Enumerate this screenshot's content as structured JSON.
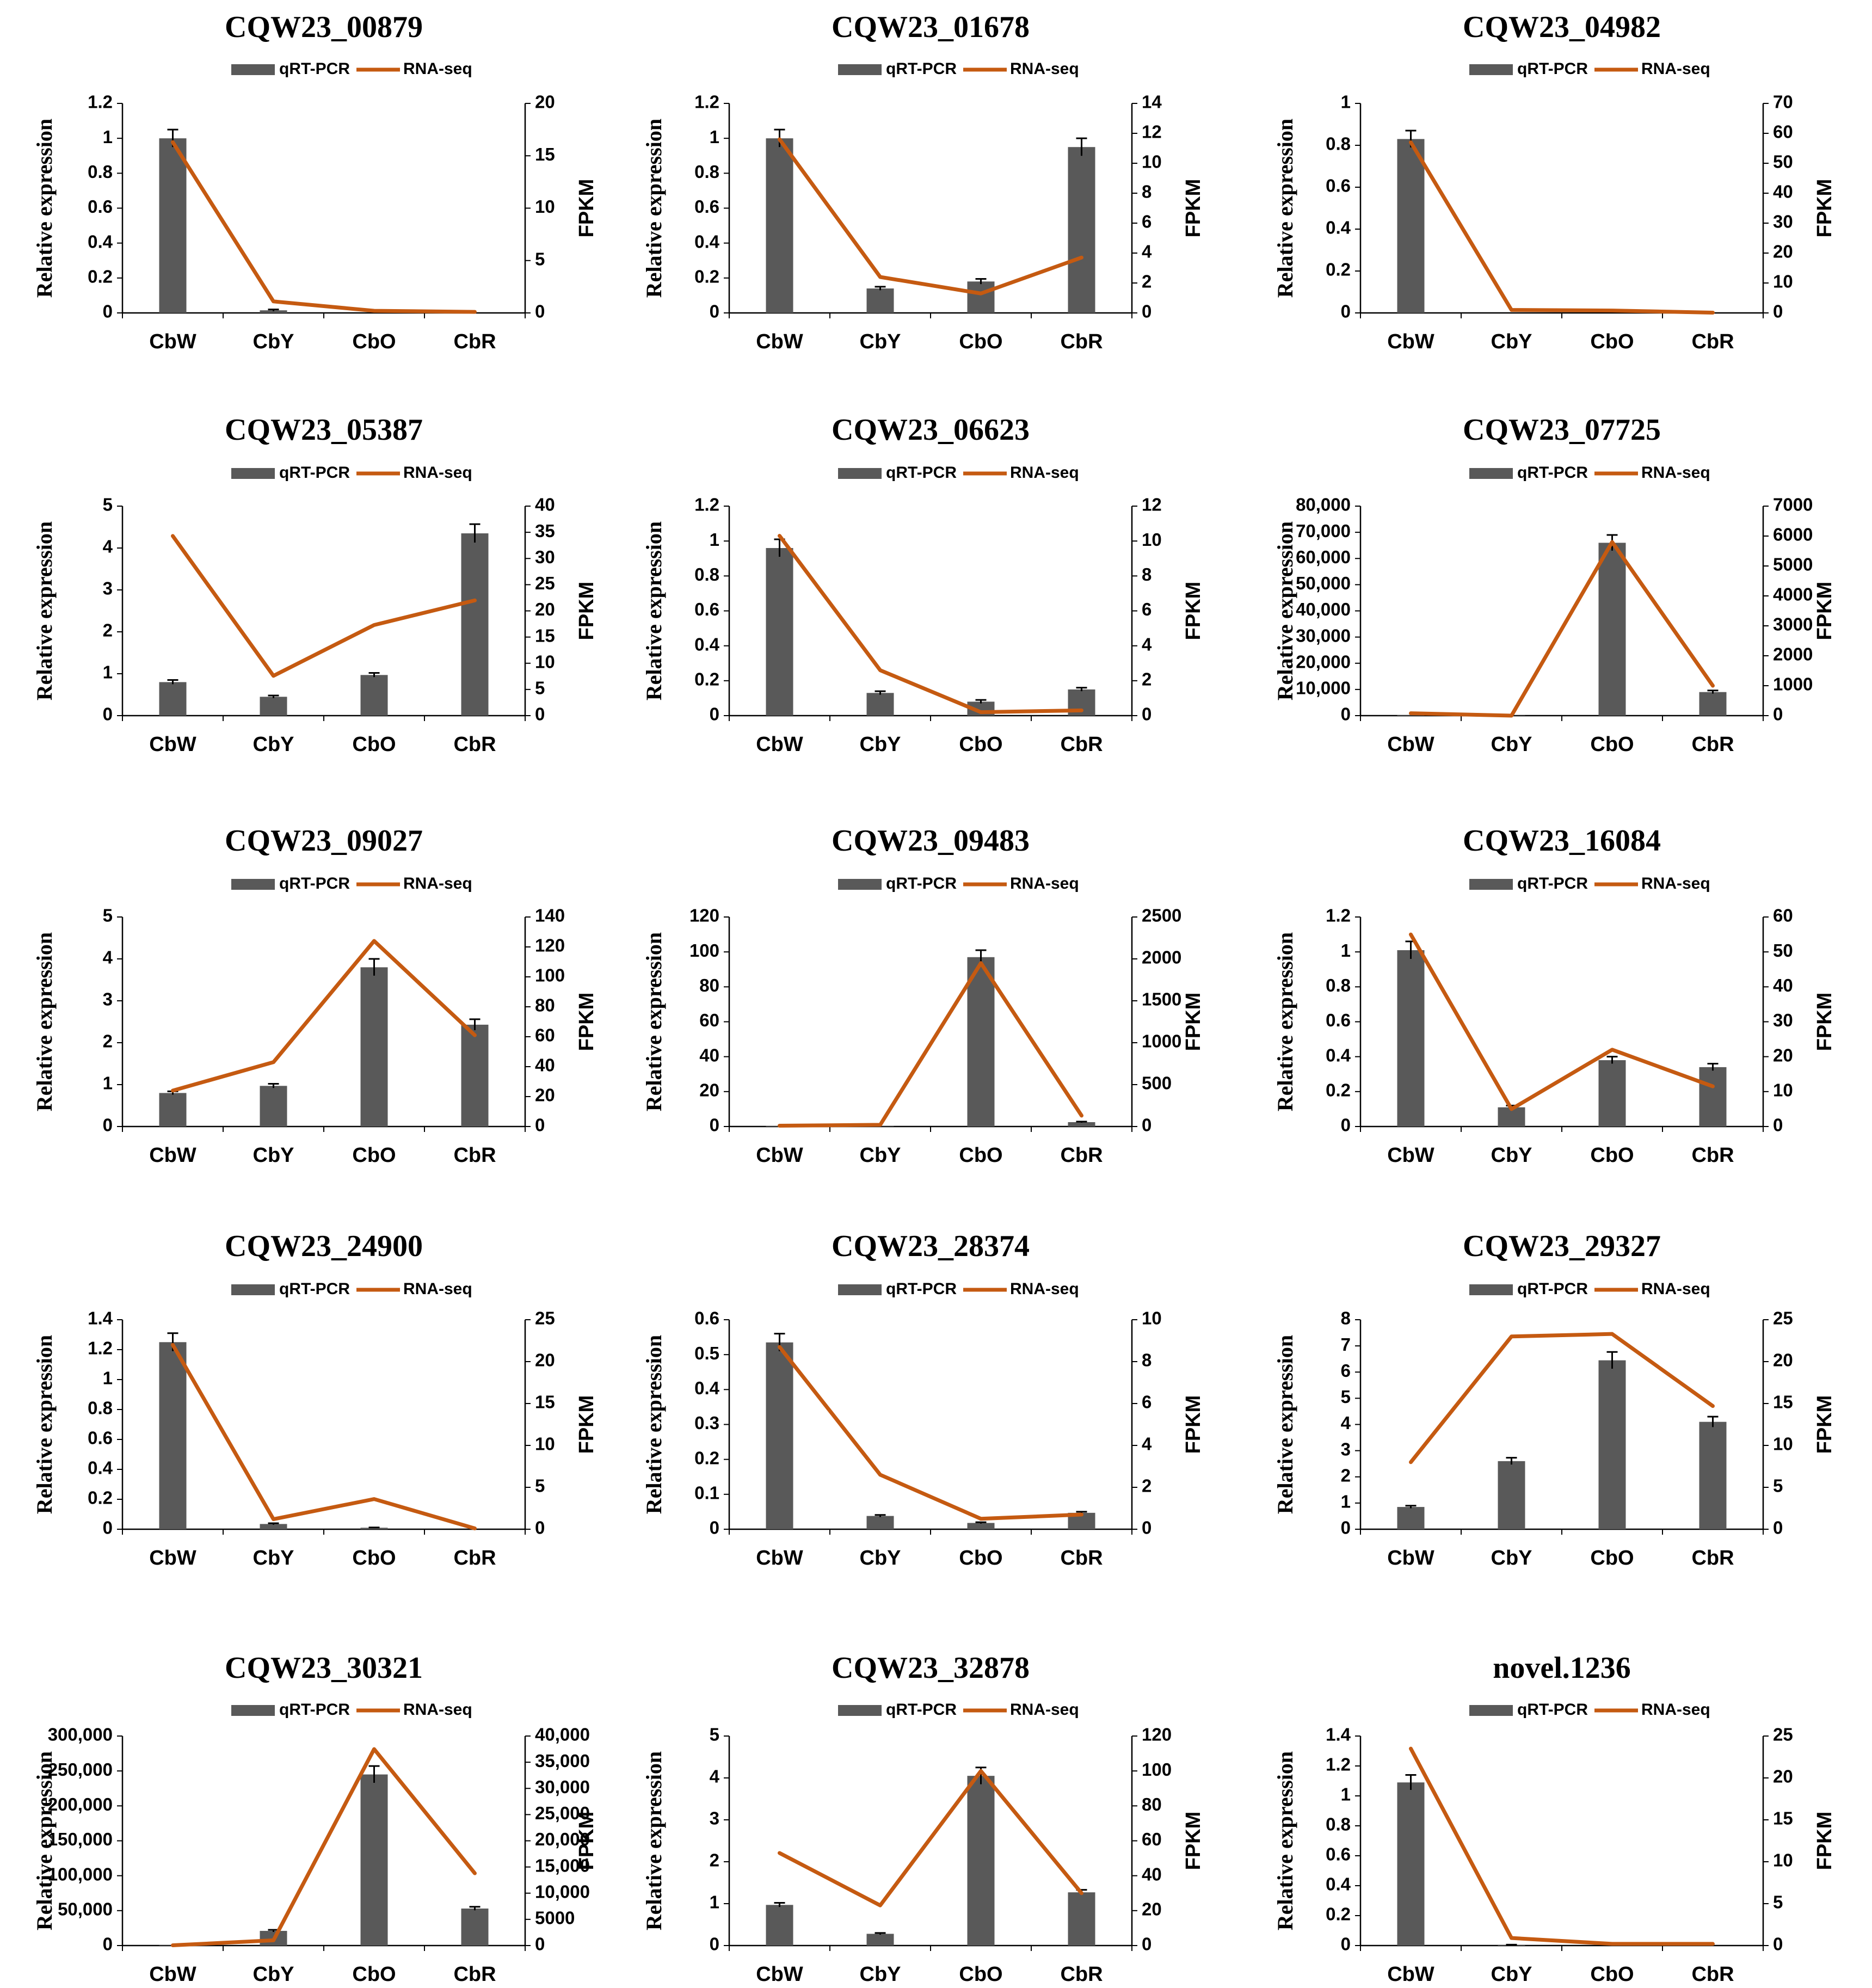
{
  "colors": {
    "bar": "#595959",
    "line": "#C55A11",
    "axis": "#000000",
    "errorbar": "#000000"
  },
  "legend": {
    "bar_label": "qRT-PCR",
    "line_label": "RNA-seq"
  },
  "chart_data": [
    {
      "type": "bar",
      "title": "CQW23_00879",
      "categories": [
        "CbW",
        "CbY",
        "CbO",
        "CbR"
      ],
      "series": [
        {
          "name": "qRT-PCR",
          "axis": "left",
          "values": [
            1.0,
            0.015,
            0.0,
            0.0
          ],
          "errors": [
            0.05,
            0.005,
            0,
            0
          ]
        },
        {
          "name": "RNA-seq",
          "axis": "right",
          "values": [
            16.3,
            1.1,
            0.2,
            0.1
          ]
        }
      ],
      "ylabel": "Relative expression",
      "y2label": "FPKM",
      "yticks": [
        "0",
        "0.2",
        "0.4",
        "0.6",
        "0.8",
        "1",
        "1.2"
      ],
      "ylim": [
        0,
        1.2
      ],
      "y2ticks": [
        "0",
        "5",
        "10",
        "15",
        "20"
      ],
      "y2lim": [
        0,
        20
      ]
    },
    {
      "type": "bar",
      "title": "CQW23_01678",
      "categories": [
        "CbW",
        "CbY",
        "CbO",
        "CbR"
      ],
      "series": [
        {
          "name": "qRT-PCR",
          "axis": "left",
          "values": [
            1.0,
            0.14,
            0.18,
            0.95
          ],
          "errors": [
            0.05,
            0.01,
            0.015,
            0.05
          ]
        },
        {
          "name": "RNA-seq",
          "axis": "right",
          "values": [
            11.6,
            2.4,
            1.3,
            3.7
          ]
        }
      ],
      "ylabel": "Relative expression",
      "y2label": "FPKM",
      "yticks": [
        "0",
        "0.2",
        "0.4",
        "0.6",
        "0.8",
        "1",
        "1.2"
      ],
      "ylim": [
        0,
        1.2
      ],
      "y2ticks": [
        "0",
        "2",
        "4",
        "6",
        "8",
        "10",
        "12",
        "14"
      ],
      "y2lim": [
        0,
        14
      ]
    },
    {
      "type": "bar",
      "title": "CQW23_04982",
      "categories": [
        "CbW",
        "CbY",
        "CbO",
        "CbR"
      ],
      "series": [
        {
          "name": "qRT-PCR",
          "axis": "left",
          "values": [
            0.83,
            0.0,
            0.0,
            0.0
          ],
          "errors": [
            0.04,
            0,
            0,
            0
          ]
        },
        {
          "name": "RNA-seq",
          "axis": "right",
          "values": [
            57.0,
            1.0,
            0.8,
            0.1
          ]
        }
      ],
      "ylabel": "Relative expression",
      "y2label": "FPKM",
      "yticks": [
        "0",
        "0.2",
        "0.4",
        "0.6",
        "0.8",
        "1"
      ],
      "ylim": [
        0,
        1
      ],
      "y2ticks": [
        "0",
        "10",
        "20",
        "30",
        "40",
        "50",
        "60",
        "70"
      ],
      "y2lim": [
        0,
        70
      ]
    },
    {
      "type": "bar",
      "title": "CQW23_05387",
      "categories": [
        "CbW",
        "CbY",
        "CbO",
        "CbR"
      ],
      "series": [
        {
          "name": "qRT-PCR",
          "axis": "left",
          "values": [
            0.8,
            0.45,
            0.97,
            4.35
          ],
          "errors": [
            0.05,
            0.03,
            0.05,
            0.22
          ]
        },
        {
          "name": "RNA-seq",
          "axis": "right",
          "values": [
            34.3,
            7.6,
            17.3,
            22.0
          ]
        }
      ],
      "ylabel": "Relative expression",
      "y2label": "FPKM",
      "yticks": [
        "0",
        "1",
        "2",
        "3",
        "4",
        "5"
      ],
      "ylim": [
        0,
        5
      ],
      "y2ticks": [
        "0",
        "5",
        "10",
        "15",
        "20",
        "25",
        "30",
        "35",
        "40"
      ],
      "y2lim": [
        0,
        40
      ]
    },
    {
      "type": "bar",
      "title": "CQW23_06623",
      "categories": [
        "CbW",
        "CbY",
        "CbO",
        "CbR"
      ],
      "series": [
        {
          "name": "qRT-PCR",
          "axis": "left",
          "values": [
            0.96,
            0.13,
            0.08,
            0.15
          ],
          "errors": [
            0.05,
            0.01,
            0.01,
            0.01
          ]
        },
        {
          "name": "RNA-seq",
          "axis": "right",
          "values": [
            10.3,
            2.6,
            0.2,
            0.3
          ]
        }
      ],
      "ylabel": "Relative expression",
      "y2label": "FPKM",
      "yticks": [
        "0",
        "0.2",
        "0.4",
        "0.6",
        "0.8",
        "1",
        "1.2"
      ],
      "ylim": [
        0,
        1.2
      ],
      "y2ticks": [
        "0",
        "2",
        "4",
        "6",
        "8",
        "10",
        "12"
      ],
      "y2lim": [
        0,
        12
      ]
    },
    {
      "type": "bar",
      "title": "CQW23_07725",
      "categories": [
        "CbW",
        "CbY",
        "CbO",
        "CbR"
      ],
      "series": [
        {
          "name": "qRT-PCR",
          "axis": "left",
          "values": [
            200,
            100,
            66000,
            9000
          ],
          "errors": [
            0,
            0,
            3000,
            600
          ]
        },
        {
          "name": "RNA-seq",
          "axis": "right",
          "values": [
            80,
            0,
            5800,
            1000
          ]
        }
      ],
      "ylabel": "Relative expression",
      "y2label": "FPKM",
      "yticks": [
        "0",
        "10,000",
        "20,000",
        "30,000",
        "40,000",
        "50,000",
        "60,000",
        "70,000",
        "80,000"
      ],
      "ylim": [
        0,
        80000
      ],
      "y2ticks": [
        "0",
        "1000",
        "2000",
        "3000",
        "4000",
        "5000",
        "6000",
        "7000"
      ],
      "y2lim": [
        0,
        7000
      ]
    },
    {
      "type": "bar",
      "title": "CQW23_09027",
      "categories": [
        "CbW",
        "CbY",
        "CbO",
        "CbR"
      ],
      "series": [
        {
          "name": "qRT-PCR",
          "axis": "left",
          "values": [
            0.8,
            0.97,
            3.8,
            2.43
          ],
          "errors": [
            0.04,
            0.05,
            0.2,
            0.13
          ]
        },
        {
          "name": "RNA-seq",
          "axis": "right",
          "values": [
            24,
            43,
            124,
            61
          ]
        }
      ],
      "ylabel": "Relative expression",
      "y2label": "FPKM",
      "yticks": [
        "0",
        "1",
        "2",
        "3",
        "4",
        "5"
      ],
      "ylim": [
        0,
        5
      ],
      "y2ticks": [
        "0",
        "20",
        "40",
        "60",
        "80",
        "100",
        "120",
        "140"
      ],
      "y2lim": [
        0,
        140
      ]
    },
    {
      "type": "bar",
      "title": "CQW23_09483",
      "categories": [
        "CbW",
        "CbY",
        "CbO",
        "CbR"
      ],
      "series": [
        {
          "name": "qRT-PCR",
          "axis": "left",
          "values": [
            0.3,
            0.2,
            97,
            2.5
          ],
          "errors": [
            0,
            0,
            4,
            0.3
          ]
        },
        {
          "name": "RNA-seq",
          "axis": "right",
          "values": [
            10,
            20,
            1950,
            130
          ]
        }
      ],
      "ylabel": "Relative expression",
      "y2label": "FPKM",
      "yticks": [
        "0",
        "20",
        "40",
        "60",
        "80",
        "100",
        "120"
      ],
      "ylim": [
        0,
        120
      ],
      "y2ticks": [
        "0",
        "500",
        "1000",
        "1500",
        "2000",
        "2500"
      ],
      "y2lim": [
        0,
        2500
      ]
    },
    {
      "type": "bar",
      "title": "CQW23_16084",
      "categories": [
        "CbW",
        "CbY",
        "CbO",
        "CbR"
      ],
      "series": [
        {
          "name": "qRT-PCR",
          "axis": "left",
          "values": [
            1.01,
            0.11,
            0.38,
            0.34
          ],
          "errors": [
            0.05,
            0.01,
            0.02,
            0.02
          ]
        },
        {
          "name": "RNA-seq",
          "axis": "right",
          "values": [
            55,
            5,
            22,
            11.5
          ]
        }
      ],
      "ylabel": "Relative expression",
      "y2label": "FPKM",
      "yticks": [
        "0",
        "0.2",
        "0.4",
        "0.6",
        "0.8",
        "1",
        "1.2"
      ],
      "ylim": [
        0,
        1.2
      ],
      "y2ticks": [
        "0",
        "10",
        "20",
        "30",
        "40",
        "50",
        "60"
      ],
      "y2lim": [
        0,
        60
      ]
    },
    {
      "type": "bar",
      "title": "CQW23_24900",
      "categories": [
        "CbW",
        "CbY",
        "CbO",
        "CbR"
      ],
      "series": [
        {
          "name": "qRT-PCR",
          "axis": "left",
          "values": [
            1.25,
            0.035,
            0.01,
            0.0
          ],
          "errors": [
            0.06,
            0.005,
            0.002,
            0
          ]
        },
        {
          "name": "RNA-seq",
          "axis": "right",
          "values": [
            22.0,
            1.2,
            3.6,
            0.1
          ]
        }
      ],
      "ylabel": "Relative expression",
      "y2label": "FPKM",
      "yticks": [
        "0",
        "0.2",
        "0.4",
        "0.6",
        "0.8",
        "1",
        "1.2",
        "1.4"
      ],
      "ylim": [
        0,
        1.4
      ],
      "y2ticks": [
        "0",
        "5",
        "10",
        "15",
        "20",
        "25"
      ],
      "y2lim": [
        0,
        25
      ]
    },
    {
      "type": "bar",
      "title": "CQW23_28374",
      "categories": [
        "CbW",
        "CbY",
        "CbO",
        "CbR"
      ],
      "series": [
        {
          "name": "qRT-PCR",
          "axis": "left",
          "values": [
            0.535,
            0.038,
            0.018,
            0.047
          ],
          "errors": [
            0.025,
            0.003,
            0.002,
            0.003
          ]
        },
        {
          "name": "RNA-seq",
          "axis": "right",
          "values": [
            8.7,
            2.6,
            0.5,
            0.7
          ]
        }
      ],
      "ylabel": "Relative expression",
      "y2label": "FPKM",
      "yticks": [
        "0",
        "0.1",
        "0.2",
        "0.3",
        "0.4",
        "0.5",
        "0.6"
      ],
      "ylim": [
        0,
        0.6
      ],
      "y2ticks": [
        "0",
        "2",
        "4",
        "6",
        "8",
        "10"
      ],
      "y2lim": [
        0,
        10
      ]
    },
    {
      "type": "bar",
      "title": "CQW23_29327",
      "categories": [
        "CbW",
        "CbY",
        "CbO",
        "CbR"
      ],
      "series": [
        {
          "name": "qRT-PCR",
          "axis": "left",
          "values": [
            0.85,
            2.6,
            6.45,
            4.1
          ],
          "errors": [
            0.05,
            0.13,
            0.32,
            0.2
          ]
        },
        {
          "name": "RNA-seq",
          "axis": "right",
          "values": [
            8.0,
            23.0,
            23.3,
            14.7
          ]
        }
      ],
      "ylabel": "Relative expression",
      "y2label": "FPKM",
      "yticks": [
        "0",
        "1",
        "2",
        "3",
        "4",
        "5",
        "6",
        "7",
        "8"
      ],
      "ylim": [
        0,
        8
      ],
      "y2ticks": [
        "0",
        "5",
        "10",
        "15",
        "20",
        "25"
      ],
      "y2lim": [
        0,
        25
      ]
    },
    {
      "type": "bar",
      "title": "CQW23_30321",
      "categories": [
        "CbW",
        "CbY",
        "CbO",
        "CbR"
      ],
      "series": [
        {
          "name": "qRT-PCR",
          "axis": "left",
          "values": [
            500,
            21000,
            245000,
            53000
          ],
          "errors": [
            0,
            1500,
            12000,
            2500
          ]
        },
        {
          "name": "RNA-seq",
          "axis": "right",
          "values": [
            50,
            1000,
            37500,
            13800
          ]
        }
      ],
      "ylabel": "Relative expression",
      "y2label": "FPKM",
      "yticks": [
        "0",
        "50,000",
        "100,000",
        "150,000",
        "200,000",
        "250,000",
        "300,000"
      ],
      "ylim": [
        0,
        300000
      ],
      "y2ticks": [
        "0",
        "5000",
        "10,000",
        "15,000",
        "20,000",
        "25,000",
        "30,000",
        "35,000",
        "40,000"
      ],
      "y2lim": [
        0,
        40000
      ]
    },
    {
      "type": "bar",
      "title": "CQW23_32878",
      "categories": [
        "CbW",
        "CbY",
        "CbO",
        "CbR"
      ],
      "series": [
        {
          "name": "qRT-PCR",
          "axis": "left",
          "values": [
            0.97,
            0.28,
            4.05,
            1.27
          ],
          "errors": [
            0.05,
            0.02,
            0.2,
            0.06
          ]
        },
        {
          "name": "RNA-seq",
          "axis": "right",
          "values": [
            53,
            23,
            100,
            30
          ]
        }
      ],
      "ylabel": "Relative expression",
      "y2label": "FPKM",
      "yticks": [
        "0",
        "1",
        "2",
        "3",
        "4",
        "5"
      ],
      "ylim": [
        0,
        5
      ],
      "y2ticks": [
        "0",
        "20",
        "40",
        "60",
        "80",
        "100",
        "120"
      ],
      "y2lim": [
        0,
        120
      ]
    },
    {
      "type": "bar",
      "title": "novel.1236",
      "categories": [
        "CbW",
        "CbY",
        "CbO",
        "CbR"
      ],
      "series": [
        {
          "name": "qRT-PCR",
          "axis": "left",
          "values": [
            1.09,
            0.005,
            0.0,
            0.0
          ],
          "errors": [
            0.05,
            0.001,
            0,
            0
          ]
        },
        {
          "name": "RNA-seq",
          "axis": "right",
          "values": [
            23.5,
            0.9,
            0.2,
            0.2
          ]
        }
      ],
      "ylabel": "Relative expression",
      "y2label": "FPKM",
      "yticks": [
        "0",
        "0.2",
        "0.4",
        "0.6",
        "0.8",
        "1",
        "1.2",
        "1.4"
      ],
      "ylim": [
        0,
        1.4
      ],
      "y2ticks": [
        "0",
        "5",
        "10",
        "15",
        "20",
        "25"
      ],
      "y2lim": [
        0,
        25
      ]
    }
  ]
}
